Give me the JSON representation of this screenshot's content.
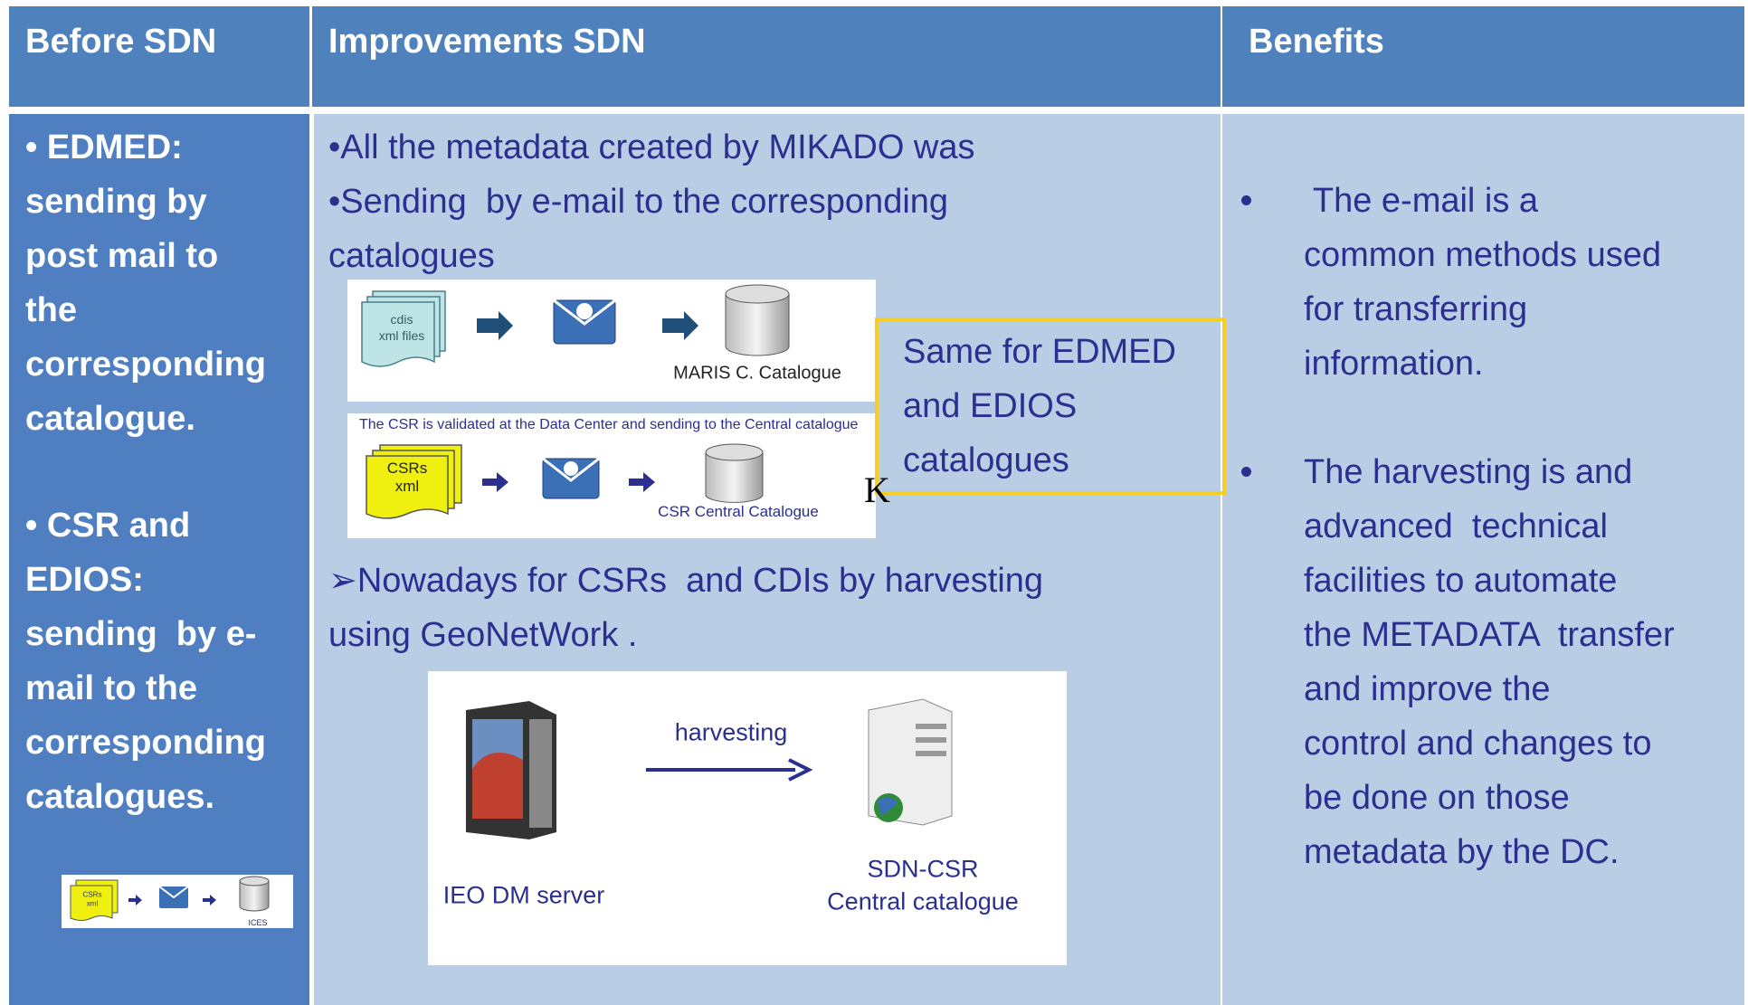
{
  "header": {
    "columns": [
      "Before SDN",
      "Improvements SDN",
      "Benefits"
    ]
  },
  "before": {
    "items": [
      {
        "lines": [
          "• EDMED:",
          "sending by",
          "post mail to",
          "the",
          "corresponding",
          "catalogue."
        ]
      },
      {
        "lines": [
          "• CSR and",
          "EDIOS:",
          "sending  by e-",
          "mail to the",
          "corresponding",
          "catalogues."
        ]
      }
    ],
    "diagram": {
      "file": [
        "CSRs",
        "xml"
      ],
      "catalogue": "ICES"
    }
  },
  "improvements": {
    "intro": [
      "•All the metadata created by MIKADO was",
      "•Sending  by e-mail to the corresponding",
      "catalogues"
    ],
    "diagram_cdi": {
      "file": [
        "cdis",
        "xml files"
      ],
      "catalogue": "MARIS C. Catalogue"
    },
    "diagram_csr": {
      "caption": "The CSR is validated at the Data Center and sending to the Central catalogue",
      "file": [
        "CSRs",
        "xml"
      ],
      "catalogue": "CSR Central Catalogue"
    },
    "callout": [
      "Same for EDMED",
      "and EDIOS",
      "catalogues"
    ],
    "stray_mark": "K",
    "nowadays": [
      "➢Nowadays for CSRs  and CDIs by harvesting",
      "using GeoNetWork ."
    ],
    "diagram_harvest": {
      "arrow_label": "harvesting",
      "source": "IEO DM server",
      "target": [
        "SDN-CSR",
        "Central catalogue"
      ]
    }
  },
  "benefits": {
    "items": [
      {
        "lines": [
          " The e-mail is a",
          "common methods used",
          "for transferring",
          "information."
        ]
      },
      {
        "lines": [
          "The harvesting is and",
          "advanced  technical",
          "facilities to automate",
          "the METADATA  transfer",
          "and improve the",
          "control and changes to",
          "be done on those",
          "metadata by the DC."
        ]
      }
    ]
  }
}
